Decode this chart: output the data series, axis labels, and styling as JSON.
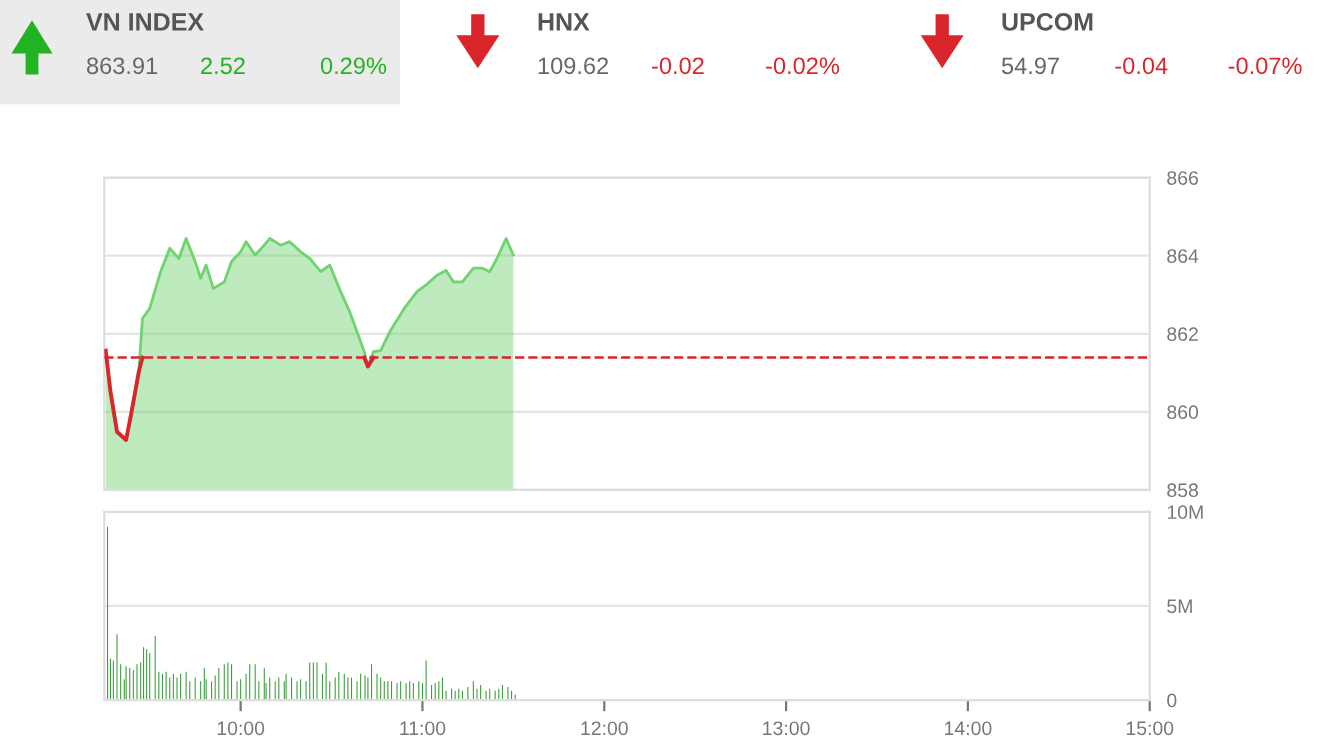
{
  "chart_data": [
    {
      "type": "other",
      "title": "VN INDEX",
      "color": "#22b322",
      "annotations": [
        "863.91",
        "2.52",
        "0.29%"
      ]
    },
    {
      "type": "other",
      "title": "HNX",
      "color": "#d9262b",
      "annotations": [
        "109.62",
        "-0.02",
        "-0.02%"
      ]
    },
    {
      "type": "other",
      "title": "UPCOM",
      "color": "#d9262b",
      "annotations": [
        "54.97",
        "-0.04",
        "-0.07%"
      ]
    },
    {
      "type": "area",
      "xlim": [
        9.25,
        15
      ],
      "ylim": [
        858,
        866
      ],
      "yticks": [
        858,
        860,
        862,
        864,
        866
      ],
      "grid": "y",
      "tick_labels": "y",
      "ref_lines": [
        {
          "axis": "y",
          "value": 861.39,
          "color": "#d9262b",
          "line_style": "dashed"
        }
      ],
      "series": [
        {
          "color": "#6fd36f",
          "x": [
            9.258,
            9.283,
            9.32,
            9.37,
            9.4,
            9.44,
            9.46,
            9.5,
            9.56,
            9.61,
            9.66,
            9.7,
            9.75,
            9.78,
            9.81,
            9.85,
            9.91,
            9.95,
            10.0,
            10.03,
            10.08,
            10.13,
            10.16,
            10.22,
            10.27,
            10.33,
            10.38,
            10.44,
            10.49,
            10.55,
            10.6,
            10.64,
            10.68,
            10.7,
            10.73,
            10.77,
            10.82,
            10.9,
            10.97,
            11.02,
            11.08,
            11.13,
            11.17,
            11.22,
            11.28,
            11.33,
            11.37,
            11.41,
            11.46,
            11.5
          ],
          "values": [
            861.57,
            860.55,
            859.49,
            859.28,
            860.0,
            861.03,
            862.39,
            862.65,
            863.59,
            864.19,
            863.93,
            864.44,
            863.85,
            863.42,
            863.76,
            863.16,
            863.33,
            863.85,
            864.1,
            864.36,
            864.02,
            864.27,
            864.44,
            864.27,
            864.36,
            864.1,
            863.93,
            863.59,
            863.76,
            863.08,
            862.56,
            862.05,
            861.54,
            861.16,
            861.54,
            861.57,
            862.05,
            862.65,
            863.08,
            863.25,
            863.5,
            863.62,
            863.33,
            863.33,
            863.68,
            863.68,
            863.59,
            863.93,
            864.44,
            864.02
          ]
        },
        {
          "type": "line",
          "color": "#d9262b",
          "x": [
            9.258,
            9.283,
            9.32,
            9.37,
            9.4,
            9.44,
            9.46,
            10.0,
            10.68,
            10.7,
            10.73
          ],
          "values": [
            861.57,
            860.55,
            859.49,
            859.28,
            860.0,
            861.03,
            861.39,
            null,
            861.39,
            861.16,
            861.39
          ]
        }
      ]
    },
    {
      "type": "bar",
      "xlim": [
        9.25,
        15
      ],
      "ylim": [
        0,
        10
      ],
      "grid": "y",
      "xticks": [
        {
          "value": 10,
          "label": "10:00"
        },
        {
          "value": 11,
          "label": "11:00"
        },
        {
          "value": 12,
          "label": "12:00"
        },
        {
          "value": 13,
          "label": "13:00"
        },
        {
          "value": 14,
          "label": "14:00"
        },
        {
          "value": 15,
          "label": "15:00"
        }
      ],
      "yticks": [
        0,
        {
          "value": 5,
          "label": "5M"
        },
        {
          "value": 10,
          "label": "10M"
        }
      ],
      "series": [
        {
          "color": "#3d9e3d",
          "x": [
            9.268,
            9.284,
            9.3,
            9.32,
            9.34,
            9.36,
            9.37,
            9.39,
            9.41,
            9.43,
            9.45,
            9.466,
            9.483,
            9.5,
            9.53,
            9.55,
            9.57,
            9.59,
            9.61,
            9.63,
            9.65,
            9.67,
            9.7,
            9.72,
            9.75,
            9.78,
            9.8,
            9.81,
            9.84,
            9.86,
            9.88,
            9.91,
            9.93,
            9.95,
            9.98,
            10.0,
            10.03,
            10.05,
            10.08,
            10.1,
            10.13,
            10.14,
            10.16,
            10.19,
            10.21,
            10.24,
            10.25,
            10.28,
            10.31,
            10.33,
            10.36,
            10.38,
            10.4,
            10.42,
            10.45,
            10.47,
            10.49,
            10.52,
            10.54,
            10.57,
            10.59,
            10.61,
            10.64,
            10.66,
            10.684,
            10.7,
            10.72,
            10.75,
            10.77,
            10.79,
            10.81,
            10.83,
            10.86,
            10.88,
            10.91,
            10.93,
            10.95,
            10.98,
            11.0,
            11.02,
            11.05,
            11.07,
            11.09,
            11.11,
            11.13,
            11.16,
            11.18,
            11.2,
            11.22,
            11.25,
            11.28,
            11.3,
            11.32,
            11.35,
            11.37,
            11.4,
            11.42,
            11.44,
            11.47,
            11.49,
            11.51
          ],
          "values": [
            9.2,
            2.2,
            2.1,
            3.5,
            1.9,
            1.1,
            1.8,
            1.7,
            1.6,
            1.9,
            2.0,
            2.8,
            2.7,
            2.5,
            3.4,
            1.5,
            1.4,
            1.5,
            1.2,
            1.4,
            1.2,
            1.4,
            1.5,
            1.0,
            1.2,
            1.0,
            1.7,
            1.1,
            1.0,
            1.3,
            1.7,
            1.9,
            2.0,
            1.9,
            1.0,
            1.1,
            1.4,
            1.9,
            1.9,
            1.0,
            1.7,
            0.9,
            1.2,
            1.0,
            1.2,
            1.0,
            1.4,
            1.2,
            1.0,
            1.1,
            1.0,
            2.0,
            2.0,
            2.0,
            1.4,
            2.0,
            1.0,
            1.2,
            1.5,
            1.4,
            1.2,
            1.2,
            1.0,
            1.4,
            1.3,
            1.2,
            1.9,
            1.4,
            1.2,
            1.0,
            1.0,
            1.0,
            0.9,
            1.0,
            0.9,
            1.0,
            0.9,
            1.0,
            0.9,
            2.1,
            0.8,
            0.9,
            1.0,
            1.2,
            0.5,
            0.6,
            0.5,
            0.6,
            0.5,
            0.7,
            1.0,
            0.6,
            0.8,
            0.5,
            0.6,
            0.5,
            0.6,
            0.8,
            0.7,
            0.5,
            0.3
          ]
        }
      ]
    }
  ]
}
